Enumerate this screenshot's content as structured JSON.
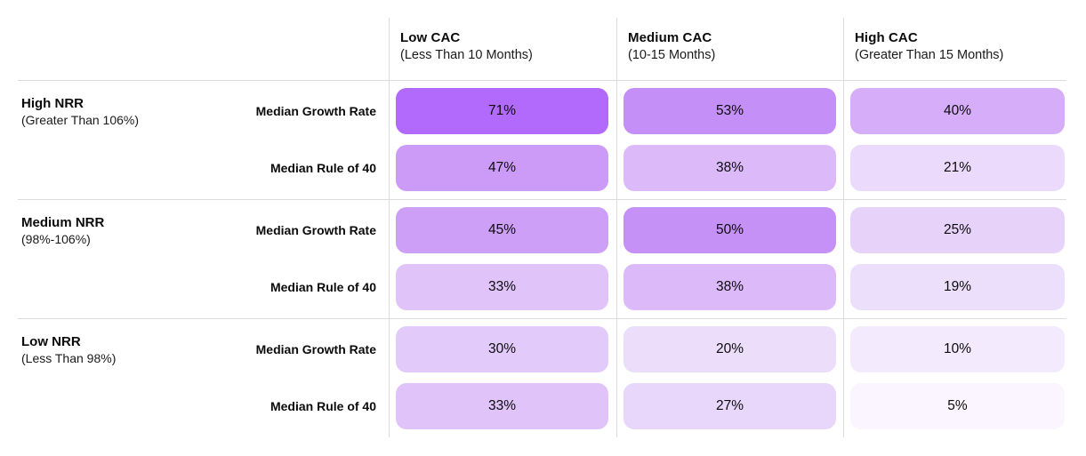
{
  "style": {
    "background": "#ffffff",
    "divider_color": "#dcdcdc",
    "text_color": "#0b0b0b",
    "accent_high": "#b16afb",
    "accent_low": "#faf5fe"
  },
  "columns": [
    {
      "title": "Low CAC",
      "subtitle": "(Less Than 10 Months)"
    },
    {
      "title": "Medium CAC",
      "subtitle": "(10-15 Months)"
    },
    {
      "title": "High CAC",
      "subtitle": "(Greater Than 15 Months)"
    }
  ],
  "groups": [
    {
      "title": "High NRR",
      "subtitle": "(Greater Than 106%)",
      "rows": [
        {
          "label": "Median Growth Rate",
          "cells": [
            {
              "value": "71%",
              "color": "#b16afb"
            },
            {
              "value": "53%",
              "color": "#c48ff6"
            },
            {
              "value": "40%",
              "color": "#d6adf8"
            }
          ]
        },
        {
          "label": "Median Rule of 40",
          "cells": [
            {
              "value": "47%",
              "color": "#cc9bf7"
            },
            {
              "value": "38%",
              "color": "#dcb9f9"
            },
            {
              "value": "21%",
              "color": "#ebdafb"
            }
          ]
        }
      ]
    },
    {
      "title": "Medium NRR",
      "subtitle": "(98%-106%)",
      "rows": [
        {
          "label": "Median Growth Rate",
          "cells": [
            {
              "value": "45%",
              "color": "#ce9ff7"
            },
            {
              "value": "50%",
              "color": "#c591f6"
            },
            {
              "value": "25%",
              "color": "#e7d3fa"
            }
          ]
        },
        {
          "label": "Median Rule of 40",
          "cells": [
            {
              "value": "33%",
              "color": "#dfc3f9"
            },
            {
              "value": "38%",
              "color": "#dcbaf9"
            },
            {
              "value": "19%",
              "color": "#ecdffb"
            }
          ]
        }
      ]
    },
    {
      "title": "Low NRR",
      "subtitle": "(Less Than 98%)",
      "rows": [
        {
          "label": "Median Growth Rate",
          "cells": [
            {
              "value": "30%",
              "color": "#e2cafa"
            },
            {
              "value": "20%",
              "color": "#ecdefb"
            },
            {
              "value": "10%",
              "color": "#f3ebfd"
            }
          ]
        },
        {
          "label": "Median Rule of 40",
          "cells": [
            {
              "value": "33%",
              "color": "#dfc3f9"
            },
            {
              "value": "27%",
              "color": "#e9d7fb"
            },
            {
              "value": "5%",
              "color": "#faf5fe"
            }
          ]
        }
      ]
    }
  ],
  "chart_data": {
    "type": "heatmap",
    "title": "Median Growth Rate and Rule of 40 by NRR and CAC Payback",
    "columns": [
      "Low CAC (Less Than 10 Months)",
      "Medium CAC (10-15 Months)",
      "High CAC (Greater Than 15 Months)"
    ],
    "row_groups": [
      "High NRR (Greater Than 106%)",
      "Medium NRR (98%-106%)",
      "Low NRR (Less Than 98%)"
    ],
    "metrics": [
      "Median Growth Rate",
      "Median Rule of 40"
    ],
    "unit": "%",
    "values": {
      "High NRR": {
        "Median Growth Rate": [
          71,
          53,
          40
        ],
        "Median Rule of 40": [
          47,
          38,
          21
        ]
      },
      "Medium NRR": {
        "Median Growth Rate": [
          45,
          50,
          25
        ],
        "Median Rule of 40": [
          33,
          38,
          19
        ]
      },
      "Low NRR": {
        "Median Growth Rate": [
          30,
          20,
          10
        ],
        "Median Rule of 40": [
          33,
          27,
          5
        ]
      }
    },
    "value_range": [
      5,
      71
    ],
    "color_scale": {
      "low": "#faf5fe",
      "high": "#b16afb"
    },
    "legend": "none",
    "grid": "light gray separators between header, row groups and columns"
  }
}
